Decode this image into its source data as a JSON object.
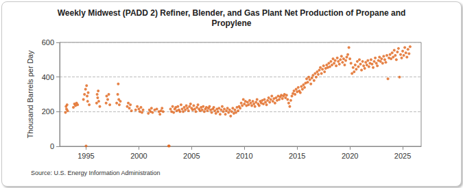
{
  "chart_data": {
    "type": "scatter",
    "title": "Weekly Midwest (PADD 2) Refiner, Blender, and Gas Plant Net Production of Propane and\nPropylene",
    "y_label": "Thousand Barrels per Day",
    "source": "Source: U.S. Energy Information Administration",
    "color": "#e0641a",
    "marker": "circle",
    "grid": true,
    "xlim": [
      1992.5,
      2026.75
    ],
    "xticks": [
      1995,
      2000,
      2005,
      2010,
      2015,
      2020,
      2025
    ],
    "ylim": [
      0,
      600
    ],
    "yticks": [
      0,
      200,
      400,
      600
    ],
    "x": [
      1993.05,
      1993.1,
      1993.15,
      1993.2,
      1993.25,
      1993.8,
      1993.9,
      1994.0,
      1994.1,
      1994.2,
      1994.75,
      1994.85,
      1994.95,
      1995.0,
      1995.05,
      1995.1,
      1995.15,
      1995.2,
      1995.3,
      1996.0,
      1996.05,
      1996.1,
      1996.15,
      1996.2,
      1996.3,
      1996.9,
      1996.95,
      1997.05,
      1997.15,
      1997.25,
      1997.9,
      1998.0,
      1998.05,
      1998.1,
      1998.15,
      1998.25,
      1998.9,
      1999.0,
      1999.1,
      1999.2,
      1999.3,
      1999.7,
      1999.85,
      2000.0,
      2000.1,
      2000.2,
      2000.3,
      2000.4,
      2000.9,
      2001.0,
      2001.1,
      2001.2,
      2001.3,
      2001.5,
      2001.7,
      2001.9,
      2002.0,
      2002.1,
      2002.2,
      2002.3,
      2002.82,
      2002.88,
      2003.0,
      2003.1,
      2003.2,
      2003.3,
      2003.4,
      2003.5,
      2003.6,
      2003.7,
      2003.8,
      2003.9,
      2004.0,
      2004.1,
      2004.2,
      2004.3,
      2004.4,
      2004.5,
      2004.6,
      2004.7,
      2004.8,
      2004.9,
      2005.0,
      2005.1,
      2005.2,
      2005.3,
      2005.4,
      2005.5,
      2005.6,
      2005.7,
      2005.8,
      2005.9,
      2006.0,
      2006.1,
      2006.2,
      2006.3,
      2006.4,
      2006.5,
      2006.6,
      2006.7,
      2006.8,
      2006.9,
      2007.0,
      2007.1,
      2007.2,
      2007.3,
      2007.4,
      2007.5,
      2007.6,
      2007.7,
      2007.8,
      2007.9,
      2008.0,
      2008.1,
      2008.2,
      2008.3,
      2008.4,
      2008.5,
      2008.6,
      2008.7,
      2008.8,
      2008.9,
      2009.0,
      2009.1,
      2009.2,
      2009.3,
      2009.4,
      2009.5,
      2009.6,
      2009.7,
      2009.8,
      2009.9,
      2010.0,
      2010.1,
      2010.2,
      2010.3,
      2010.4,
      2010.5,
      2010.6,
      2010.7,
      2010.8,
      2010.9,
      2011.0,
      2011.1,
      2011.2,
      2011.3,
      2011.4,
      2011.5,
      2011.6,
      2011.7,
      2011.8,
      2011.9,
      2012.0,
      2012.1,
      2012.2,
      2012.3,
      2012.4,
      2012.5,
      2012.6,
      2012.7,
      2012.8,
      2012.9,
      2013.0,
      2013.1,
      2013.2,
      2013.3,
      2013.4,
      2013.5,
      2013.6,
      2013.7,
      2013.8,
      2013.9,
      2014.0,
      2014.1,
      2014.2,
      2014.3,
      2014.4,
      2014.5,
      2014.6,
      2014.7,
      2014.8,
      2014.9,
      2015.0,
      2015.1,
      2015.2,
      2015.3,
      2015.4,
      2015.5,
      2015.6,
      2015.7,
      2015.8,
      2015.9,
      2016.0,
      2016.1,
      2016.2,
      2016.3,
      2016.4,
      2016.5,
      2016.6,
      2016.7,
      2016.8,
      2016.9,
      2017.0,
      2017.1,
      2017.2,
      2017.3,
      2017.4,
      2017.5,
      2017.6,
      2017.7,
      2017.8,
      2017.9,
      2018.0,
      2018.1,
      2018.2,
      2018.3,
      2018.4,
      2018.5,
      2018.6,
      2018.7,
      2018.8,
      2018.9,
      2019.0,
      2019.1,
      2019.2,
      2019.3,
      2019.4,
      2019.5,
      2019.6,
      2019.7,
      2019.8,
      2019.9,
      2020.0,
      2020.1,
      2020.2,
      2020.3,
      2020.4,
      2020.5,
      2020.6,
      2020.7,
      2020.8,
      2020.9,
      2021.0,
      2021.1,
      2021.2,
      2021.3,
      2021.4,
      2021.5,
      2021.6,
      2021.7,
      2021.8,
      2021.9,
      2022.0,
      2022.1,
      2022.2,
      2022.3,
      2022.4,
      2022.5,
      2022.6,
      2022.7,
      2022.8,
      2022.9,
      2023.0,
      2023.1,
      2023.2,
      2023.3,
      2023.4,
      2023.5,
      2023.6,
      2023.7,
      2023.8,
      2023.9,
      2024.0,
      2024.1,
      2024.2,
      2024.3,
      2024.4,
      2024.5,
      2024.6,
      2024.7,
      2024.8,
      2024.9,
      2025.0,
      2025.1,
      2025.2,
      2025.3,
      2025.4,
      2025.5,
      2025.6,
      2025.7
    ],
    "values": [
      195,
      230,
      215,
      240,
      205,
      225,
      245,
      235,
      250,
      240,
      270,
      300,
      330,
      2,
      350,
      290,
      260,
      310,
      240,
      250,
      300,
      280,
      320,
      260,
      230,
      250,
      290,
      270,
      300,
      240,
      250,
      300,
      360,
      270,
      240,
      260,
      230,
      250,
      220,
      240,
      205,
      210,
      230,
      215,
      200,
      225,
      195,
      210,
      190,
      210,
      200,
      220,
      195,
      210,
      215,
      200,
      185,
      205,
      220,
      200,
      2,
      2,
      215,
      200,
      230,
      195,
      215,
      225,
      205,
      230,
      210,
      200,
      240,
      215,
      200,
      225,
      210,
      235,
      220,
      205,
      230,
      245,
      220,
      210,
      235,
      215,
      200,
      225,
      240,
      215,
      205,
      225,
      210,
      230,
      200,
      215,
      225,
      205,
      220,
      230,
      210,
      195,
      215,
      225,
      205,
      190,
      215,
      200,
      220,
      185,
      210,
      230,
      200,
      215,
      185,
      205,
      220,
      195,
      210,
      175,
      200,
      220,
      190,
      210,
      195,
      225,
      205,
      230,
      220,
      250,
      235,
      270,
      245,
      260,
      235,
      255,
      240,
      265,
      250,
      235,
      260,
      245,
      230,
      255,
      270,
      245,
      235,
      260,
      250,
      265,
      245,
      270,
      255,
      240,
      265,
      280,
      255,
      270,
      290,
      260,
      275,
      250,
      280,
      265,
      290,
      270,
      285,
      295,
      275,
      290,
      300,
      280,
      295,
      270,
      250,
      230,
      265,
      290,
      305,
      320,
      300,
      330,
      315,
      340,
      320,
      310,
      345,
      330,
      355,
      340,
      365,
      390,
      370,
      400,
      385,
      360,
      395,
      410,
      380,
      420,
      400,
      430,
      415,
      440,
      455,
      420,
      445,
      465,
      430,
      450,
      470,
      455,
      480,
      460,
      490,
      470,
      505,
      480,
      495,
      465,
      510,
      490,
      475,
      500,
      520,
      485,
      505,
      470,
      495,
      515,
      530,
      570,
      505,
      480,
      420,
      455,
      430,
      470,
      445,
      490,
      460,
      500,
      475,
      440,
      490,
      465,
      450,
      485,
      470,
      495,
      460,
      480,
      500,
      475,
      455,
      490,
      510,
      480,
      465,
      495,
      515,
      490,
      505,
      480,
      520,
      500,
      485,
      525,
      390,
      510,
      530,
      505,
      540,
      515,
      555,
      525,
      500,
      545,
      565,
      400,
      530,
      510,
      550,
      525,
      570,
      540,
      515,
      560,
      535,
      575
    ]
  }
}
